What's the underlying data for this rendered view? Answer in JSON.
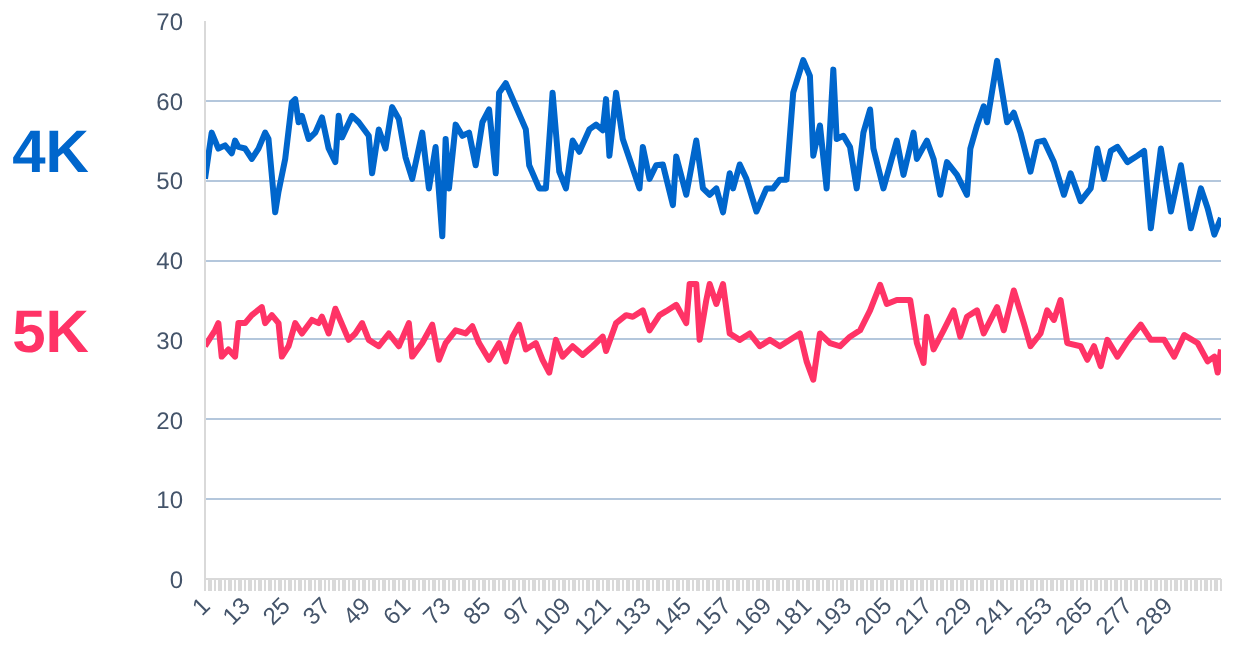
{
  "chart_data": {
    "type": "line",
    "xlim": [
      1,
      305
    ],
    "xticks": [
      1,
      13,
      25,
      37,
      49,
      61,
      73,
      85,
      97,
      109,
      121,
      133,
      145,
      157,
      169,
      181,
      193,
      205,
      217,
      229,
      241,
      253,
      265,
      277,
      289
    ],
    "ylim": [
      0,
      70
    ],
    "yticks": [
      0,
      10,
      20,
      30,
      40,
      50,
      60,
      70
    ],
    "grid": "y",
    "marker": "none",
    "line_style": "solid",
    "series": [
      {
        "name": "4K",
        "color": "#0066cc",
        "x": [
          1,
          3,
          5,
          7,
          9,
          10,
          11,
          13,
          15,
          17,
          19,
          20,
          22,
          23,
          25,
          27,
          28,
          29,
          30,
          32,
          34,
          36,
          38,
          40,
          41,
          42,
          45,
          47,
          50,
          51,
          53,
          55,
          57,
          59,
          61,
          63,
          66,
          68,
          70,
          72,
          73,
          74,
          76,
          78,
          80,
          82,
          84,
          86,
          88,
          89,
          91,
          94,
          97,
          98,
          101,
          103,
          105,
          107,
          109,
          111,
          113,
          116,
          118,
          120,
          121,
          122,
          124,
          126,
          129,
          131,
          132,
          134,
          136,
          138,
          141,
          142,
          145,
          148,
          150,
          152,
          154,
          156,
          158,
          159,
          161,
          163,
          166,
          169,
          171,
          173,
          175,
          177,
          180,
          182,
          183,
          185,
          187,
          189,
          190,
          192,
          194,
          196,
          198,
          200,
          201,
          204,
          208,
          210,
          213,
          214,
          217,
          219,
          221,
          223,
          226,
          229,
          230,
          232,
          234,
          235,
          238,
          241,
          243,
          245,
          248,
          250,
          252,
          255,
          258,
          260,
          263,
          266,
          268,
          270,
          272,
          274,
          277,
          280,
          282,
          284,
          287,
          290,
          293,
          296,
          299,
          301,
          303,
          305
        ],
        "values": [
          50.2,
          56,
          54,
          54.4,
          53.4,
          55,
          54.2,
          54,
          52.7,
          54,
          56,
          55.2,
          46,
          48.6,
          52.7,
          59.8,
          60.2,
          57.3,
          58.1,
          55.2,
          56,
          57.9,
          54,
          52.3,
          58.1,
          55.4,
          58.1,
          57.3,
          55.6,
          50.9,
          56.4,
          54,
          59.2,
          57.7,
          52.9,
          50.2,
          56,
          49,
          54.2,
          43,
          55.2,
          49,
          57,
          55.6,
          56,
          51.9,
          57.3,
          58.9,
          50.9,
          61,
          62.2,
          59.3,
          56.4,
          51.9,
          49,
          49,
          61,
          51.1,
          49,
          55,
          53.6,
          56.4,
          57,
          56.3,
          60.2,
          53.1,
          61,
          55.2,
          51.5,
          49,
          54.2,
          50.2,
          51.9,
          52,
          46.9,
          53,
          48.2,
          55,
          49,
          48.2,
          49,
          46,
          50.9,
          49,
          52,
          50.2,
          46.1,
          49,
          49,
          50.1,
          50.1,
          61,
          65.1,
          63.1,
          53.1,
          56.9,
          49,
          63.9,
          55.2,
          55.6,
          54.2,
          49,
          56,
          58.9,
          54,
          49,
          55,
          50.7,
          56,
          52.7,
          55,
          52.7,
          48.2,
          52.3,
          50.7,
          48.2,
          54,
          56.9,
          59.3,
          57.3,
          65,
          57.3,
          58.5,
          56,
          51.1,
          54.8,
          55,
          52.3,
          48.2,
          50.9,
          47.4,
          49,
          54,
          50.2,
          53.7,
          54.2,
          52.3,
          53.1,
          53.7,
          44,
          54,
          46.1,
          51.9,
          44,
          49,
          46.5,
          43.2,
          45.3
        ]
      },
      {
        "name": "5K",
        "color": "#ff3366",
        "x": [
          1,
          4,
          5,
          6,
          8,
          10,
          11,
          13,
          15,
          18,
          19,
          21,
          23,
          24,
          26,
          28,
          30,
          33,
          35,
          36,
          38,
          40,
          44,
          46,
          48,
          50,
          53,
          56,
          59,
          62,
          63,
          66,
          69,
          71,
          73,
          76,
          79,
          81,
          83,
          86,
          89,
          91,
          93,
          95,
          97,
          100,
          102,
          104,
          106,
          108,
          111,
          114,
          117,
          120,
          121,
          124,
          127,
          129,
          132,
          134,
          137,
          139,
          142,
          145,
          146,
          148,
          149,
          151,
          152,
          154,
          156,
          158,
          161,
          164,
          167,
          170,
          173,
          179,
          181,
          183,
          185,
          188,
          191,
          194,
          197,
          200,
          203,
          205,
          208,
          212,
          214,
          216,
          217,
          219,
          222,
          225,
          227,
          229,
          232,
          234,
          238,
          240,
          243,
          246,
          248,
          251,
          253,
          255,
          257,
          259,
          263,
          265,
          267,
          269,
          271,
          274,
          277,
          281,
          284,
          288,
          291,
          294,
          298,
          301,
          303,
          304,
          305
        ],
        "values": [
          29.2,
          31.2,
          32.1,
          27.9,
          28.8,
          27.9,
          32.1,
          32.1,
          33.1,
          34.1,
          32.1,
          33.1,
          32.1,
          27.9,
          29.2,
          32.1,
          30.8,
          32.5,
          32.1,
          32.9,
          30.8,
          33.9,
          30,
          30.8,
          32.1,
          30,
          29.2,
          30.8,
          29.2,
          32.1,
          27.9,
          29.6,
          31.9,
          27.5,
          29.6,
          31.2,
          30.8,
          31.7,
          29.6,
          27.5,
          29.6,
          27.3,
          30.4,
          31.9,
          28.8,
          29.6,
          27.5,
          25.9,
          30,
          27.9,
          29.2,
          28.1,
          29.2,
          30.4,
          28.6,
          32.1,
          33.1,
          32.9,
          33.7,
          31.2,
          33.1,
          33.6,
          34.4,
          32.1,
          37,
          37,
          30,
          35,
          37,
          34.5,
          37,
          30.8,
          30,
          30.8,
          29.2,
          30,
          29.2,
          30.8,
          27.3,
          25,
          30.8,
          29.6,
          29.2,
          30.4,
          31.2,
          33.7,
          36.9,
          34.5,
          35,
          35,
          29.6,
          27.1,
          32.9,
          28.8,
          31.2,
          33.7,
          30.4,
          32.9,
          33.7,
          30.8,
          34.1,
          31.2,
          36.2,
          32.1,
          29.2,
          30.8,
          33.7,
          32.5,
          35,
          29.6,
          29.2,
          27.5,
          29.2,
          26.7,
          30,
          27.9,
          29.8,
          31.9,
          30,
          30,
          27.9,
          30.6,
          29.6,
          27.3,
          27.9,
          25.9,
          28.8
        ]
      }
    ]
  }
}
